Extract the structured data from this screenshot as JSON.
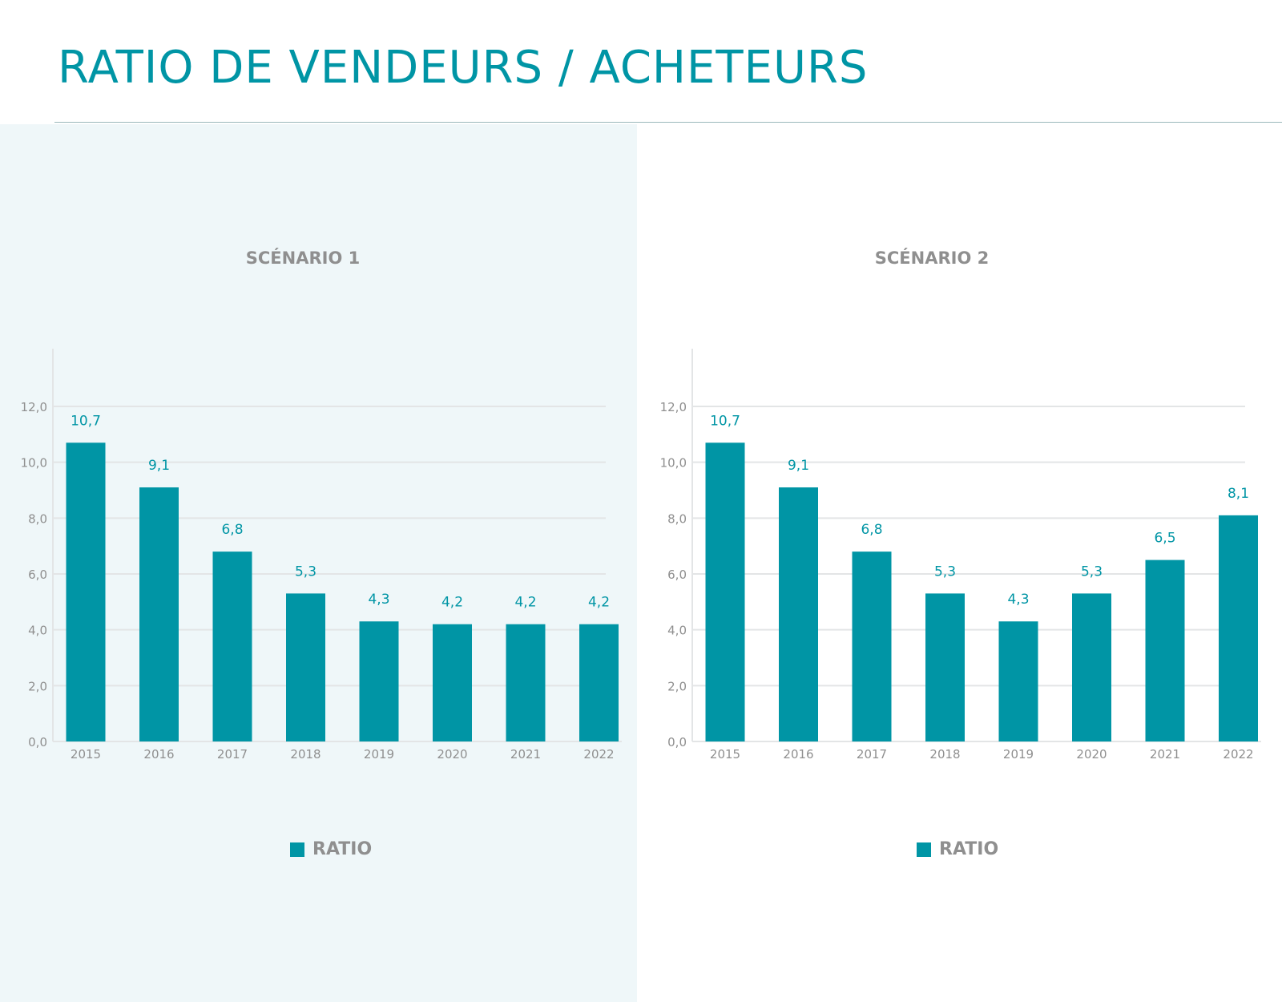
{
  "title": "RATIO DE VENDEURS / ACHETEURS",
  "colors": {
    "accent": "#0095a5",
    "panel": "#eff7f9",
    "grid": "#e3e5e6",
    "axis_text": "#8f8f8f"
  },
  "chart_data": [
    {
      "type": "bar",
      "title": "SCÉNARIO 1",
      "categories": [
        "2015",
        "2016",
        "2017",
        "2018",
        "2019",
        "2020",
        "2021",
        "2022"
      ],
      "series": [
        {
          "name": "RATIO",
          "values": [
            10.7,
            9.1,
            6.8,
            5.3,
            4.3,
            4.2,
            4.2,
            4.2
          ],
          "labels": [
            "10,7",
            "9,1",
            "6,8",
            "5,3",
            "4,3",
            "4,2",
            "4,2",
            "4,2"
          ]
        }
      ],
      "yticks": [
        "0,0",
        "2,0",
        "4,0",
        "6,0",
        "8,0",
        "10,0",
        "12,0"
      ],
      "ylim": [
        0,
        12
      ],
      "grid": true,
      "legend": "bottom-center"
    },
    {
      "type": "bar",
      "title": "SCÉNARIO 2",
      "categories": [
        "2015",
        "2016",
        "2017",
        "2018",
        "2019",
        "2020",
        "2021",
        "2022"
      ],
      "series": [
        {
          "name": "RATIO",
          "values": [
            10.7,
            9.1,
            6.8,
            5.3,
            4.3,
            5.3,
            6.5,
            8.1
          ],
          "labels": [
            "10,7",
            "9,1",
            "6,8",
            "5,3",
            "4,3",
            "5,3",
            "6,5",
            "8,1"
          ]
        }
      ],
      "yticks": [
        "0,0",
        "2,0",
        "4,0",
        "6,0",
        "8,0",
        "10,0",
        "12,0"
      ],
      "ylim": [
        0,
        12
      ],
      "grid": true,
      "legend": "bottom-center"
    }
  ]
}
